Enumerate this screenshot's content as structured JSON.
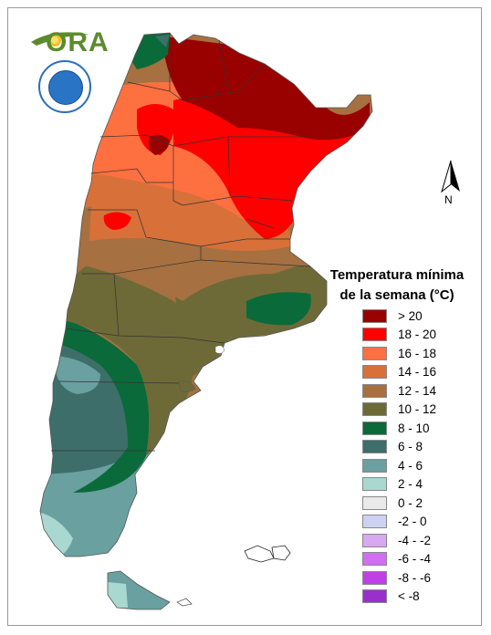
{
  "logo": {
    "text": "ORA",
    "seal_name": "smn-seal"
  },
  "north_arrow": {
    "label": "N"
  },
  "legend": {
    "title_line1": "Temperatura mínima",
    "title_line2": "de la semana (°C)",
    "items": [
      {
        "label": "> 20",
        "color": "#990000"
      },
      {
        "label": "18 - 20",
        "color": "#ff0000"
      },
      {
        "label": "16 - 18",
        "color": "#ff7040"
      },
      {
        "label": "14 - 16",
        "color": "#d8703a"
      },
      {
        "label": "12 - 14",
        "color": "#a67040"
      },
      {
        "label": "10 - 12",
        "color": "#6e6a38"
      },
      {
        "label": "8 - 10",
        "color": "#0a6a3a"
      },
      {
        "label": "6 - 8",
        "color": "#3e6e6a"
      },
      {
        "label": "4 - 6",
        "color": "#6aa0a0"
      },
      {
        "label": "2 - 4",
        "color": "#a8d8d0"
      },
      {
        "label": "0 - 2",
        "color": "#eaeaea"
      },
      {
        "label": "-2 - 0",
        "color": "#cdd2f2"
      },
      {
        "label": "-4 - -2",
        "color": "#d8a8f0"
      },
      {
        "label": "-6 - -4",
        "color": "#d070f0"
      },
      {
        "label": "-8 - -6",
        "color": "#c040e8"
      },
      {
        "label": "< -8",
        "color": "#9a30cc"
      }
    ]
  }
}
